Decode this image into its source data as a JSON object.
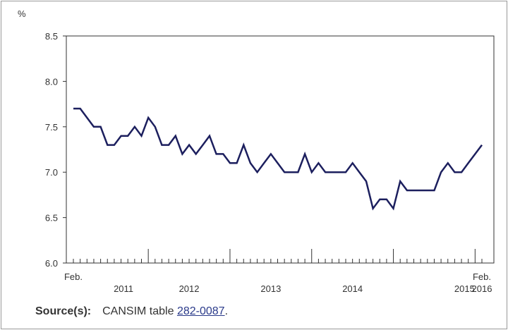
{
  "chart_data": {
    "type": "line",
    "title": "",
    "xlabel": "",
    "ylabel": "%",
    "ylim": [
      6.0,
      8.5
    ],
    "yticks": [
      "6.0",
      "6.5",
      "7.0",
      "7.5",
      "8.0",
      "8.5"
    ],
    "grid": false,
    "legend": "none",
    "line_color": "#1c1f5e",
    "x_start_label": "Feb.",
    "x_end_label": "Feb.",
    "year_labels": [
      "2011",
      "2012",
      "2013",
      "2014",
      "2015",
      "2016"
    ],
    "x": [
      "2011-02",
      "2011-03",
      "2011-04",
      "2011-05",
      "2011-06",
      "2011-07",
      "2011-08",
      "2011-09",
      "2011-10",
      "2011-11",
      "2011-12",
      "2012-01",
      "2012-02",
      "2012-03",
      "2012-04",
      "2012-05",
      "2012-06",
      "2012-07",
      "2012-08",
      "2012-09",
      "2012-10",
      "2012-11",
      "2012-12",
      "2013-01",
      "2013-02",
      "2013-03",
      "2013-04",
      "2013-05",
      "2013-06",
      "2013-07",
      "2013-08",
      "2013-09",
      "2013-10",
      "2013-11",
      "2013-12",
      "2014-01",
      "2014-02",
      "2014-03",
      "2014-04",
      "2014-05",
      "2014-06",
      "2014-07",
      "2014-08",
      "2014-09",
      "2014-10",
      "2014-11",
      "2014-12",
      "2015-01",
      "2015-02",
      "2015-03",
      "2015-04",
      "2015-05",
      "2015-06",
      "2015-07",
      "2015-08",
      "2015-09",
      "2015-10",
      "2015-11",
      "2015-12",
      "2016-01",
      "2016-02"
    ],
    "series": [
      {
        "values": [
          7.7,
          7.7,
          7.6,
          7.5,
          7.5,
          7.3,
          7.3,
          7.4,
          7.4,
          7.5,
          7.4,
          7.6,
          7.5,
          7.3,
          7.3,
          7.4,
          7.2,
          7.3,
          7.2,
          7.3,
          7.4,
          7.2,
          7.2,
          7.1,
          7.1,
          7.3,
          7.1,
          7.0,
          7.1,
          7.2,
          7.1,
          7.0,
          7.0,
          7.0,
          7.2,
          7.0,
          7.1,
          7.0,
          7.0,
          7.0,
          7.0,
          7.1,
          7.0,
          6.9,
          6.6,
          6.7,
          6.7,
          6.6,
          6.9,
          6.8,
          6.8,
          6.8,
          6.8,
          6.8,
          7.0,
          7.1,
          7.0,
          7.0,
          7.1,
          7.2,
          7.3
        ]
      }
    ]
  },
  "source": {
    "label": "Source(s):",
    "text_prefix": "CANSIM table ",
    "link_text": "282-0087",
    "text_suffix": "."
  }
}
